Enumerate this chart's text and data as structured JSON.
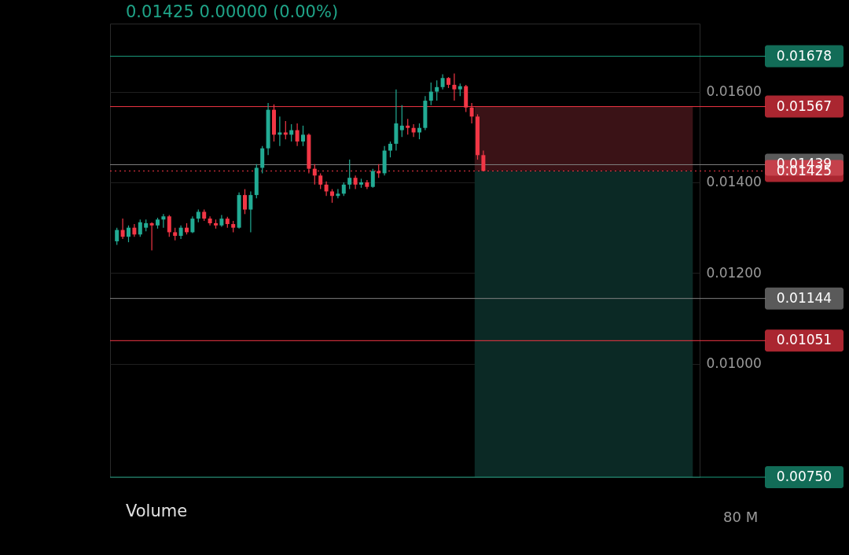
{
  "chart_data": {
    "type": "candlestick",
    "categories": [
      null,
      null,
      null,
      null,
      null,
      null,
      null,
      null,
      null,
      null,
      null,
      null,
      null,
      null,
      null,
      null,
      null,
      null,
      null,
      null,
      null,
      null,
      null,
      null,
      null,
      null,
      null,
      null,
      null,
      null,
      null,
      null,
      null,
      null,
      null,
      null,
      null,
      null,
      null,
      null,
      null,
      null,
      null,
      null,
      null,
      null,
      null,
      null,
      null,
      null,
      null,
      null,
      null,
      null,
      null,
      null,
      null,
      null,
      null,
      null,
      null,
      null,
      null,
      null,
      null,
      null,
      null,
      null,
      null,
      null,
      null,
      null,
      null,
      null,
      null,
      null,
      null,
      null,
      null,
      null,
      null,
      null,
      null,
      null,
      null,
      null,
      null,
      null,
      null,
      null,
      null,
      null,
      null,
      null,
      null,
      null,
      null,
      null,
      null,
      null
    ],
    "ohlc": [
      [
        0.0127,
        0.013,
        0.01262,
        0.01295
      ],
      [
        0.01295,
        0.0132,
        0.01275,
        0.0128
      ],
      [
        0.0128,
        0.01305,
        0.01268,
        0.013
      ],
      [
        0.013,
        0.01308,
        0.0128,
        0.01285
      ],
      [
        0.01285,
        0.01318,
        0.0128,
        0.01312
      ],
      [
        0.013,
        0.01318,
        0.01292,
        0.0131
      ],
      [
        0.0131,
        0.01312,
        0.0125,
        0.01305
      ],
      [
        0.01305,
        0.01322,
        0.01298,
        0.01318
      ],
      [
        0.01318,
        0.0133,
        0.013,
        0.01325
      ],
      [
        0.01325,
        0.01328,
        0.0128,
        0.0129
      ],
      [
        0.0129,
        0.013,
        0.01272,
        0.01282
      ],
      [
        0.01282,
        0.01305,
        0.01275,
        0.013
      ],
      [
        0.013,
        0.0131,
        0.01285,
        0.0129
      ],
      [
        0.0129,
        0.01325,
        0.01288,
        0.0132
      ],
      [
        0.0132,
        0.0134,
        0.01312,
        0.01335
      ],
      [
        0.01335,
        0.0134,
        0.01315,
        0.0132
      ],
      [
        0.0132,
        0.01325,
        0.01305,
        0.0131
      ],
      [
        0.0131,
        0.01318,
        0.01298,
        0.01305
      ],
      [
        0.01305,
        0.01328,
        0.01302,
        0.0132
      ],
      [
        0.0132,
        0.01324,
        0.013,
        0.01308
      ],
      [
        0.01308,
        0.01315,
        0.0129,
        0.013
      ],
      [
        0.013,
        0.01378,
        0.01298,
        0.01372
      ],
      [
        0.01372,
        0.01385,
        0.0133,
        0.0134
      ],
      [
        0.0134,
        0.0138,
        0.0129,
        0.01372
      ],
      [
        0.01372,
        0.0144,
        0.01365,
        0.01432
      ],
      [
        0.01432,
        0.0148,
        0.0142,
        0.01475
      ],
      [
        0.01475,
        0.01575,
        0.0146,
        0.0156
      ],
      [
        0.0156,
        0.01572,
        0.0149,
        0.01505
      ],
      [
        0.01505,
        0.01545,
        0.0148,
        0.0151
      ],
      [
        0.0151,
        0.01535,
        0.01495,
        0.01505
      ],
      [
        0.01505,
        0.01528,
        0.0149,
        0.01515
      ],
      [
        0.01515,
        0.0153,
        0.0148,
        0.0149
      ],
      [
        0.0149,
        0.01525,
        0.0148,
        0.01505
      ],
      [
        0.01505,
        0.01508,
        0.0142,
        0.0143
      ],
      [
        0.0143,
        0.0144,
        0.01395,
        0.01415
      ],
      [
        0.01415,
        0.0142,
        0.01385,
        0.01395
      ],
      [
        0.01395,
        0.01402,
        0.0137,
        0.0138
      ],
      [
        0.0138,
        0.01385,
        0.01355,
        0.0137
      ],
      [
        0.0137,
        0.01385,
        0.01365,
        0.01375
      ],
      [
        0.01375,
        0.014,
        0.0137,
        0.01395
      ],
      [
        0.01395,
        0.0145,
        0.01385,
        0.0141
      ],
      [
        0.0141,
        0.01415,
        0.01385,
        0.01395
      ],
      [
        0.01395,
        0.01408,
        0.01388,
        0.014
      ],
      [
        0.014,
        0.01405,
        0.01385,
        0.0139
      ],
      [
        0.0139,
        0.0143,
        0.01388,
        0.01425
      ],
      [
        0.01425,
        0.0144,
        0.0141,
        0.0142
      ],
      [
        0.0142,
        0.0148,
        0.01415,
        0.0147
      ],
      [
        0.0147,
        0.0149,
        0.01455,
        0.01485
      ],
      [
        0.01485,
        0.01605,
        0.0147,
        0.0153
      ],
      [
        0.01515,
        0.0157,
        0.015,
        0.01525
      ],
      [
        0.01525,
        0.0154,
        0.01505,
        0.0152
      ],
      [
        0.0152,
        0.01528,
        0.015,
        0.0151
      ],
      [
        0.0151,
        0.0153,
        0.01495,
        0.0152
      ],
      [
        0.0152,
        0.0159,
        0.01515,
        0.0158
      ],
      [
        0.0158,
        0.0162,
        0.0157,
        0.016
      ],
      [
        0.016,
        0.01625,
        0.0158,
        0.0161
      ],
      [
        0.0161,
        0.01638,
        0.01605,
        0.0163
      ],
      [
        0.0163,
        0.01632,
        0.01608,
        0.01615
      ],
      [
        0.01615,
        0.0164,
        0.0158,
        0.01605
      ],
      [
        0.01605,
        0.01618,
        0.0159,
        0.01612
      ],
      [
        0.01612,
        0.01615,
        0.01555,
        0.01565
      ],
      [
        0.01565,
        0.01575,
        0.0153,
        0.01545
      ],
      [
        0.01545,
        0.0155,
        0.0145,
        0.0146
      ],
      [
        0.0146,
        0.0147,
        0.01425,
        0.01425
      ],
      null,
      null,
      null,
      null,
      null,
      null,
      null,
      null,
      null,
      null,
      null,
      null,
      null,
      null,
      null,
      null,
      null,
      null,
      null,
      null,
      null,
      null,
      null,
      null,
      null,
      null,
      null,
      null,
      null,
      null,
      null,
      null,
      null,
      null,
      null,
      null
    ],
    "ylim": [
      0.0075,
      0.0175
    ],
    "yticks": [
      {
        "value": 0.01,
        "label": "0.01000"
      },
      {
        "value": 0.012,
        "label": "0.01200"
      },
      {
        "value": 0.014,
        "label": "0.01400"
      },
      {
        "value": 0.016,
        "label": "0.01600"
      }
    ],
    "grid": true,
    "bands": [
      {
        "axis": "y",
        "from": 0.01425,
        "to": 0.01567,
        "color": "#3a1216"
      },
      {
        "axis": "y",
        "from": 0.0075,
        "to": 0.01425,
        "color": "#0b2925"
      }
    ],
    "ref_lines": [
      {
        "axis": "y",
        "value": 0.01678,
        "label": "0.01678",
        "color": "#1a9a7c",
        "line_style": "solid"
      },
      {
        "axis": "y",
        "value": 0.01567,
        "label": "0.01567",
        "color": "#f23645",
        "line_style": "solid"
      },
      {
        "axis": "y",
        "value": 0.01439,
        "label": "0.01439",
        "color": "#808080",
        "line_style": "solid"
      },
      {
        "axis": "y",
        "value": 0.01425,
        "label": "0.01425",
        "color": "#f23645",
        "line_style": "dotted"
      },
      {
        "axis": "y",
        "value": 0.01144,
        "label": "0.01144",
        "color": "#808080",
        "line_style": "solid"
      },
      {
        "axis": "y",
        "value": 0.01051,
        "label": "0.01051",
        "color": "#f23645",
        "line_style": "solid"
      },
      {
        "axis": "y",
        "value": 0.0075,
        "label": "0.00750",
        "color": "#1a9a7c",
        "line_style": "solid"
      }
    ],
    "annotations": [
      "0.01425  0.00000 (0.00%)",
      "Volume",
      "80 M"
    ]
  }
}
